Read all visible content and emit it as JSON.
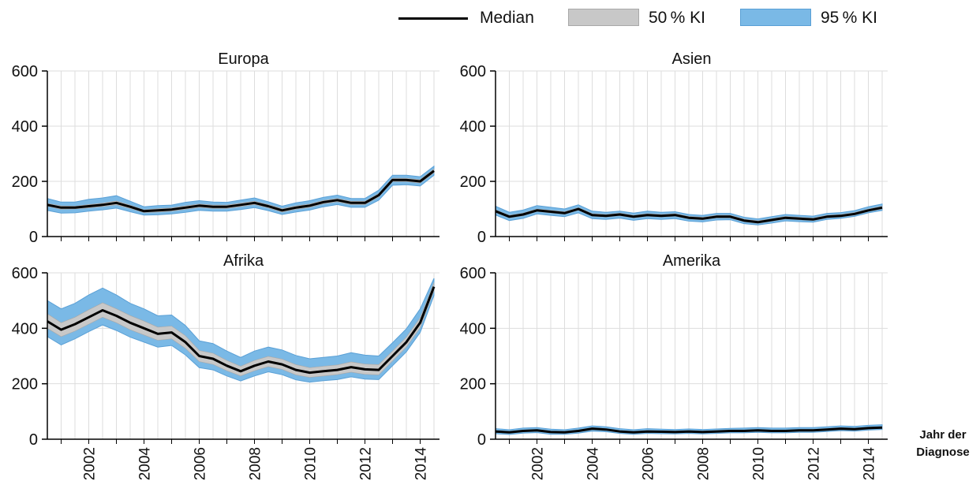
{
  "legend": {
    "median_label": "Median",
    "ki50_label": "50 % KI",
    "ki95_label": "95 % KI"
  },
  "x_axis_title_line1": "Jahr der",
  "x_axis_title_line2": "Diagnose",
  "colors": {
    "median": "#000000",
    "ki50_fill": "#c8c8c8",
    "ki50_border": "#a8a8a8",
    "ki95_fill": "#7ab9e6",
    "ki95_border": "#5aa0d6",
    "grid": "#dddddd",
    "axis": "#000000"
  },
  "chart_data": [
    {
      "type": "area",
      "title": "Europa",
      "xlim": [
        2000.5,
        2014.7
      ],
      "ylim": [
        0,
        600
      ],
      "yticks": [
        0,
        200,
        400,
        600
      ],
      "xticks": [
        2002,
        2004,
        2006,
        2008,
        2010,
        2012,
        2014
      ],
      "grid": true,
      "x": [
        2000.5,
        2001,
        2001.5,
        2002,
        2002.5,
        2003,
        2003.5,
        2004,
        2004.5,
        2005,
        2005.5,
        2006,
        2006.5,
        2007,
        2007.5,
        2008,
        2008.5,
        2009,
        2009.5,
        2010,
        2010.5,
        2011,
        2011.5,
        2012,
        2012.5,
        2013,
        2013.5,
        2014,
        2014.5
      ],
      "series": [
        {
          "name": "Median",
          "values": [
            115,
            105,
            105,
            110,
            115,
            122,
            108,
            92,
            95,
            98,
            105,
            112,
            108,
            108,
            115,
            122,
            110,
            95,
            105,
            112,
            125,
            132,
            122,
            122,
            150,
            205,
            205,
            200,
            238
          ]
        },
        {
          "name": "50 % KI",
          "low": [
            110,
            99,
            100,
            104,
            109,
            115,
            102,
            87,
            89,
            92,
            99,
            106,
            102,
            102,
            109,
            116,
            104,
            89,
            99,
            106,
            119,
            126,
            116,
            116,
            144,
            199,
            199,
            194,
            231
          ],
          "high": [
            120,
            111,
            110,
            116,
            121,
            129,
            114,
            97,
            101,
            104,
            111,
            118,
            114,
            114,
            121,
            128,
            116,
            101,
            111,
            118,
            131,
            138,
            128,
            128,
            156,
            211,
            211,
            206,
            245
          ]
        },
        {
          "name": "95 % KI",
          "low": [
            95,
            85,
            86,
            92,
            97,
            103,
            90,
            78,
            79,
            82,
            88,
            95,
            92,
            92,
            98,
            105,
            94,
            80,
            89,
            96,
            108,
            116,
            106,
            106,
            132,
            186,
            188,
            183,
            222
          ],
          "high": [
            138,
            125,
            125,
            135,
            140,
            148,
            128,
            108,
            112,
            114,
            124,
            130,
            125,
            124,
            132,
            140,
            126,
            110,
            122,
            130,
            142,
            150,
            138,
            138,
            168,
            222,
            222,
            217,
            255
          ]
        }
      ]
    },
    {
      "type": "area",
      "title": "Asien",
      "xlim": [
        2000.5,
        2014.7
      ],
      "ylim": [
        0,
        600
      ],
      "yticks": [
        0,
        200,
        400,
        600
      ],
      "xticks": [
        2002,
        2004,
        2006,
        2008,
        2010,
        2012,
        2014
      ],
      "grid": true,
      "x": [
        2000.5,
        2001,
        2001.5,
        2002,
        2002.5,
        2003,
        2003.5,
        2004,
        2004.5,
        2005,
        2005.5,
        2006,
        2006.5,
        2007,
        2007.5,
        2008,
        2008.5,
        2009,
        2009.5,
        2010,
        2010.5,
        2011,
        2011.5,
        2012,
        2012.5,
        2013,
        2013.5,
        2014,
        2014.5
      ],
      "series": [
        {
          "name": "Median",
          "values": [
            92,
            72,
            80,
            95,
            90,
            85,
            100,
            78,
            75,
            80,
            72,
            78,
            75,
            78,
            68,
            65,
            72,
            72,
            58,
            52,
            60,
            68,
            65,
            62,
            72,
            75,
            82,
            95,
            105
          ]
        },
        {
          "name": "50 % KI",
          "low": [
            88,
            68,
            76,
            91,
            86,
            81,
            96,
            74,
            71,
            76,
            68,
            74,
            71,
            74,
            64,
            61,
            68,
            68,
            54,
            48,
            56,
            64,
            61,
            58,
            68,
            71,
            78,
            91,
            100
          ],
          "high": [
            97,
            77,
            85,
            100,
            95,
            90,
            105,
            83,
            80,
            85,
            77,
            83,
            80,
            83,
            73,
            70,
            77,
            77,
            63,
            57,
            65,
            73,
            70,
            67,
            77,
            80,
            87,
            100,
            110
          ]
        },
        {
          "name": "95 % KI",
          "low": [
            78,
            58,
            66,
            82,
            77,
            72,
            86,
            65,
            62,
            67,
            59,
            65,
            62,
            65,
            56,
            53,
            60,
            61,
            47,
            42,
            49,
            57,
            54,
            52,
            62,
            66,
            73,
            86,
            95
          ],
          "high": [
            110,
            88,
            96,
            112,
            106,
            100,
            115,
            92,
            88,
            92,
            85,
            92,
            88,
            90,
            80,
            77,
            84,
            84,
            70,
            64,
            72,
            80,
            77,
            74,
            84,
            87,
            94,
            108,
            118
          ]
        }
      ]
    },
    {
      "type": "area",
      "title": "Afrika",
      "xlim": [
        2000.5,
        2014.7
      ],
      "ylim": [
        0,
        600
      ],
      "yticks": [
        0,
        200,
        400,
        600
      ],
      "xticks": [
        2002,
        2004,
        2006,
        2008,
        2010,
        2012,
        2014
      ],
      "grid": true,
      "x": [
        2000.5,
        2001,
        2001.5,
        2002,
        2002.5,
        2003,
        2003.5,
        2004,
        2004.5,
        2005,
        2005.5,
        2006,
        2006.5,
        2007,
        2007.5,
        2008,
        2008.5,
        2009,
        2009.5,
        2010,
        2010.5,
        2011,
        2011.5,
        2012,
        2012.5,
        2013,
        2013.5,
        2014,
        2014.5
      ],
      "series": [
        {
          "name": "Median",
          "values": [
            425,
            395,
            415,
            440,
            465,
            445,
            420,
            400,
            380,
            385,
            350,
            300,
            290,
            265,
            245,
            265,
            280,
            270,
            250,
            240,
            245,
            250,
            260,
            252,
            250,
            300,
            350,
            420,
            550
          ]
        },
        {
          "name": "50 % KI",
          "low": [
            400,
            370,
            390,
            415,
            440,
            420,
            395,
            376,
            357,
            362,
            328,
            280,
            270,
            247,
            228,
            247,
            262,
            252,
            232,
            223,
            228,
            233,
            242,
            234,
            232,
            282,
            332,
            402,
            535
          ],
          "high": [
            452,
            420,
            440,
            467,
            492,
            470,
            446,
            426,
            404,
            408,
            373,
            320,
            310,
            284,
            263,
            284,
            299,
            289,
            269,
            258,
            263,
            268,
            279,
            271,
            269,
            318,
            368,
            438,
            565
          ]
        },
        {
          "name": "95 % KI",
          "low": [
            370,
            340,
            362,
            388,
            412,
            392,
            368,
            350,
            332,
            338,
            304,
            258,
            250,
            228,
            210,
            228,
            243,
            233,
            214,
            206,
            211,
            215,
            225,
            217,
            215,
            265,
            315,
            385,
            518
          ],
          "high": [
            500,
            470,
            490,
            520,
            545,
            520,
            490,
            470,
            445,
            448,
            410,
            355,
            345,
            318,
            295,
            318,
            332,
            322,
            302,
            290,
            295,
            300,
            312,
            303,
            300,
            348,
            398,
            470,
            580
          ]
        }
      ]
    },
    {
      "type": "area",
      "title": "Amerika",
      "xlim": [
        2000.5,
        2014.7
      ],
      "ylim": [
        0,
        600
      ],
      "yticks": [
        0,
        200,
        400,
        600
      ],
      "xticks": [
        2002,
        2004,
        2006,
        2008,
        2010,
        2012,
        2014
      ],
      "grid": true,
      "x": [
        2000.5,
        2001,
        2001.5,
        2002,
        2002.5,
        2003,
        2003.5,
        2004,
        2004.5,
        2005,
        2005.5,
        2006,
        2006.5,
        2007,
        2007.5,
        2008,
        2008.5,
        2009,
        2009.5,
        2010,
        2010.5,
        2011,
        2011.5,
        2012,
        2012.5,
        2013,
        2013.5,
        2014,
        2014.5
      ],
      "series": [
        {
          "name": "Median",
          "values": [
            28,
            25,
            30,
            32,
            26,
            25,
            30,
            38,
            35,
            28,
            25,
            28,
            27,
            26,
            28,
            26,
            28,
            30,
            30,
            32,
            30,
            30,
            32,
            32,
            35,
            38,
            36,
            40,
            42
          ]
        },
        {
          "name": "50 % KI",
          "low": [
            25,
            22,
            27,
            29,
            23,
            22,
            27,
            35,
            32,
            25,
            22,
            25,
            24,
            23,
            25,
            23,
            25,
            27,
            27,
            29,
            27,
            27,
            29,
            29,
            32,
            35,
            33,
            37,
            39
          ],
          "high": [
            31,
            28,
            33,
            35,
            29,
            28,
            33,
            41,
            38,
            31,
            28,
            31,
            30,
            29,
            31,
            29,
            31,
            33,
            33,
            35,
            33,
            33,
            35,
            35,
            38,
            41,
            39,
            43,
            45
          ]
        },
        {
          "name": "95 % KI",
          "low": [
            20,
            17,
            22,
            24,
            18,
            18,
            22,
            29,
            27,
            21,
            18,
            21,
            20,
            19,
            21,
            19,
            21,
            23,
            23,
            25,
            23,
            23,
            25,
            25,
            28,
            31,
            29,
            33,
            35
          ],
          "high": [
            38,
            34,
            40,
            42,
            36,
            34,
            40,
            48,
            45,
            38,
            34,
            38,
            36,
            35,
            37,
            35,
            37,
            39,
            40,
            42,
            40,
            40,
            42,
            42,
            45,
            48,
            46,
            50,
            52
          ]
        }
      ]
    }
  ]
}
